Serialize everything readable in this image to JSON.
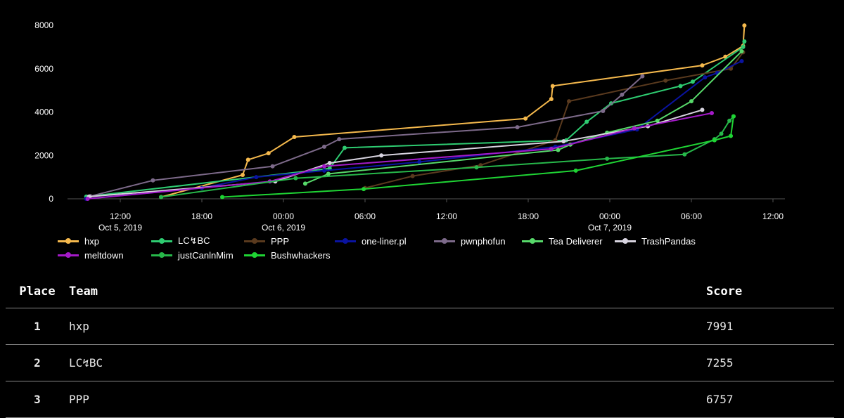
{
  "chart_data": {
    "type": "line",
    "xlabel": "",
    "ylabel": "",
    "ylim": [
      0,
      8000
    ],
    "xlim": [
      "2019-10-05T07:30",
      "2019-10-07T12:00"
    ],
    "y_ticks": [
      0,
      2000,
      4000,
      6000,
      8000
    ],
    "x_ticks": [
      {
        "time": "2019-10-05T12:00",
        "label": "12:00",
        "date_label": "Oct 5, 2019"
      },
      {
        "time": "2019-10-05T18:00",
        "label": "18:00",
        "date_label": ""
      },
      {
        "time": "2019-10-06T00:00",
        "label": "00:00",
        "date_label": "Oct 6, 2019"
      },
      {
        "time": "2019-10-06T06:00",
        "label": "06:00",
        "date_label": ""
      },
      {
        "time": "2019-10-06T12:00",
        "label": "12:00",
        "date_label": ""
      },
      {
        "time": "2019-10-06T18:00",
        "label": "18:00",
        "date_label": ""
      },
      {
        "time": "2019-10-07T00:00",
        "label": "00:00",
        "date_label": "Oct 7, 2019"
      },
      {
        "time": "2019-10-07T06:00",
        "label": "06:00",
        "date_label": ""
      },
      {
        "time": "2019-10-07T12:00",
        "label": "12:00",
        "date_label": ""
      }
    ],
    "grid": false,
    "legend_position": "bottom",
    "series": [
      {
        "name": "hxp",
        "color": "#f5b94d",
        "points": [
          [
            "2019-10-05T15:00",
            80
          ],
          [
            "2019-10-05T21:00",
            1100
          ],
          [
            "2019-10-05T21:24",
            1800
          ],
          [
            "2019-10-05T22:54",
            2100
          ],
          [
            "2019-10-06T00:48",
            2850
          ],
          [
            "2019-10-06T17:48",
            3700
          ],
          [
            "2019-10-06T19:42",
            4600
          ],
          [
            "2019-10-06T19:48",
            5200
          ],
          [
            "2019-10-07T06:48",
            6150
          ],
          [
            "2019-10-07T08:30",
            6550
          ],
          [
            "2019-10-07T09:48",
            7050
          ],
          [
            "2019-10-07T09:54",
            7991
          ]
        ]
      },
      {
        "name": "LC↯BC",
        "color": "#2ecc71",
        "points": [
          [
            "2019-10-05T09:30",
            100
          ],
          [
            "2019-10-06T03:24",
            1400
          ],
          [
            "2019-10-06T04:30",
            2350
          ],
          [
            "2019-10-06T20:48",
            2700
          ],
          [
            "2019-10-06T22:18",
            3550
          ],
          [
            "2019-10-07T00:06",
            4400
          ],
          [
            "2019-10-07T05:12",
            5200
          ],
          [
            "2019-10-07T06:06",
            5400
          ],
          [
            "2019-10-07T09:48",
            7000
          ],
          [
            "2019-10-07T09:54",
            7255
          ]
        ]
      },
      {
        "name": "PPP",
        "color": "#5a3a1e",
        "points": [
          [
            "2019-10-06T06:00",
            500
          ],
          [
            "2019-10-06T09:30",
            1050
          ],
          [
            "2019-10-06T14:30",
            1550
          ],
          [
            "2019-10-06T20:00",
            2700
          ],
          [
            "2019-10-06T21:00",
            4500
          ],
          [
            "2019-10-07T04:06",
            5450
          ],
          [
            "2019-10-07T08:54",
            6000
          ],
          [
            "2019-10-07T09:48",
            6757
          ]
        ]
      },
      {
        "name": "one-liner.pl",
        "color": "#0a13a0",
        "points": [
          [
            "2019-10-05T09:30",
            0
          ],
          [
            "2019-10-05T18:00",
            500
          ],
          [
            "2019-10-05T22:00",
            1000
          ],
          [
            "2019-10-06T03:00",
            1300
          ],
          [
            "2019-10-06T10:00",
            1700
          ],
          [
            "2019-10-06T20:00",
            2400
          ],
          [
            "2019-10-07T02:00",
            3200
          ],
          [
            "2019-10-07T07:00",
            5600
          ],
          [
            "2019-10-07T07:54",
            5800
          ],
          [
            "2019-10-07T09:42",
            6350
          ]
        ]
      },
      {
        "name": "pwnphofun",
        "color": "#7d6a8a",
        "points": [
          [
            "2019-10-05T09:48",
            120
          ],
          [
            "2019-10-05T14:24",
            850
          ],
          [
            "2019-10-05T23:12",
            1500
          ],
          [
            "2019-10-06T03:00",
            2400
          ],
          [
            "2019-10-06T04:06",
            2750
          ],
          [
            "2019-10-06T17:12",
            3300
          ],
          [
            "2019-10-06T23:30",
            4050
          ],
          [
            "2019-10-07T00:54",
            4800
          ],
          [
            "2019-10-07T02:24",
            5650
          ]
        ]
      },
      {
        "name": "Tea Deliverer",
        "color": "#57d96a",
        "points": [
          [
            "2019-10-06T01:36",
            700
          ],
          [
            "2019-10-06T03:18",
            1150
          ],
          [
            "2019-10-06T20:12",
            2250
          ],
          [
            "2019-10-06T21:06",
            2500
          ],
          [
            "2019-10-06T23:48",
            3050
          ],
          [
            "2019-10-07T03:30",
            3600
          ],
          [
            "2019-10-07T06:00",
            4500
          ],
          [
            "2019-10-07T09:42",
            6800
          ]
        ]
      },
      {
        "name": "TrashPandas",
        "color": "#d8d4e0",
        "points": [
          [
            "2019-10-05T09:42",
            100
          ],
          [
            "2019-10-05T23:24",
            800
          ],
          [
            "2019-10-06T03:24",
            1650
          ],
          [
            "2019-10-06T07:12",
            2000
          ],
          [
            "2019-10-06T20:36",
            2650
          ],
          [
            "2019-10-07T02:48",
            3350
          ],
          [
            "2019-10-07T06:48",
            4100
          ]
        ]
      },
      {
        "name": "meltdown",
        "color": "#a41ac8",
        "points": [
          [
            "2019-10-05T09:36",
            0
          ],
          [
            "2019-10-05T23:00",
            800
          ],
          [
            "2019-10-06T03:00",
            1500
          ],
          [
            "2019-10-06T19:42",
            2300
          ],
          [
            "2019-10-07T01:48",
            3250
          ],
          [
            "2019-10-07T07:30",
            3950
          ]
        ]
      },
      {
        "name": "justCanlnMim",
        "color": "#27b84a",
        "points": [
          [
            "2019-10-05T15:00",
            80
          ],
          [
            "2019-10-06T00:54",
            950
          ],
          [
            "2019-10-06T14:12",
            1450
          ],
          [
            "2019-10-06T23:48",
            1850
          ],
          [
            "2019-10-07T05:30",
            2050
          ],
          [
            "2019-10-07T07:42",
            2750
          ],
          [
            "2019-10-07T08:12",
            3000
          ],
          [
            "2019-10-07T08:48",
            3600
          ],
          [
            "2019-10-07T09:06",
            3800
          ]
        ]
      },
      {
        "name": "Bushwhackers",
        "color": "#1fd434",
        "points": [
          [
            "2019-10-05T19:30",
            80
          ],
          [
            "2019-10-06T05:54",
            450
          ],
          [
            "2019-10-06T21:30",
            1300
          ],
          [
            "2019-10-07T07:42",
            2700
          ],
          [
            "2019-10-07T08:54",
            2900
          ],
          [
            "2019-10-07T09:06",
            3800
          ]
        ]
      }
    ]
  },
  "scoreboard": {
    "headers": {
      "place": "Place",
      "team": "Team",
      "score": "Score"
    },
    "rows": [
      {
        "place": "1",
        "team": "hxp",
        "score": "7991"
      },
      {
        "place": "2",
        "team": "LC↯BC",
        "score": "7255"
      },
      {
        "place": "3",
        "team": "PPP",
        "score": "6757"
      }
    ]
  }
}
